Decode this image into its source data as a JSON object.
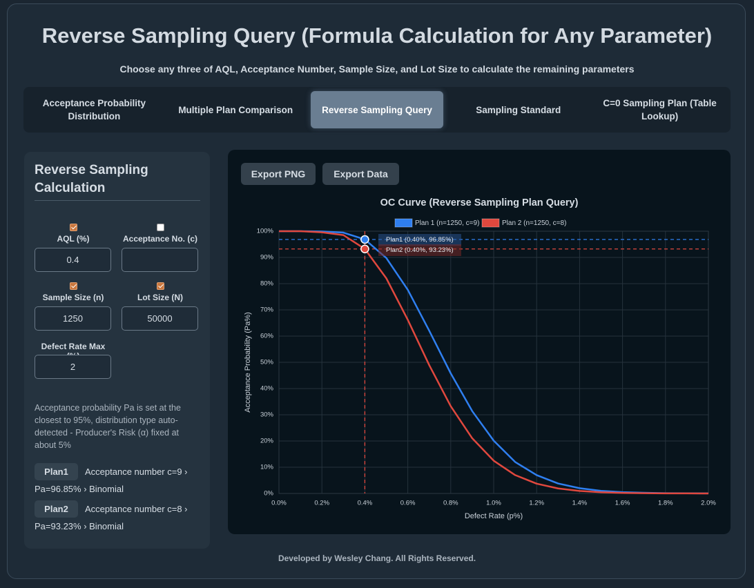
{
  "header": {
    "title": "Reverse Sampling Query (Formula Calculation for Any Parameter)",
    "subtitle": "Choose any three of AQL, Acceptance Number, Sample Size, and Lot Size to calculate the remaining parameters"
  },
  "tabs": [
    {
      "label": "Acceptance Probability Distribution"
    },
    {
      "label": "Multiple Plan Comparison"
    },
    {
      "label": "Reverse Sampling Query",
      "active": true
    },
    {
      "label": "Sampling Standard"
    },
    {
      "label": "C=0 Sampling Plan (Table Lookup)"
    }
  ],
  "form": {
    "title": "Reverse Sampling Calculation",
    "fields": [
      {
        "label": "AQL (%)",
        "checked": true,
        "value": "0.4"
      },
      {
        "label": "Acceptance No. (c)",
        "checked": false
      },
      {
        "label": "Sample Size (n)",
        "checked": true,
        "value": "1250"
      },
      {
        "label": "Lot Size (N)",
        "checked": true,
        "value": "50000"
      }
    ],
    "defect_rate_max": {
      "label": "Defect Rate Max (%)",
      "value": "2"
    },
    "note": "Acceptance probability Pa is set at the closest to 95%, distribution type auto-detected - Producer's Risk (α) fixed at about 5%",
    "results": [
      {
        "plan": "Plan1",
        "text": "Acceptance number c=9 › Pa=96.85% › Binomial"
      },
      {
        "plan": "Plan2",
        "text": "Acceptance number c=8 › Pa=93.23% › Binomial"
      }
    ]
  },
  "buttons": [
    "Export PNG",
    "Export Data"
  ],
  "chart_data": {
    "type": "line",
    "title": "OC Curve (Reverse Sampling Plan Query)",
    "x_label": "Defect Rate (p%)",
    "y_label": "Acceptance Probability (Pa%)",
    "x": [
      0,
      0.1,
      0.2,
      0.3,
      0.4,
      0.5,
      0.6,
      0.7,
      0.8,
      0.9,
      1.0,
      1.1,
      1.2,
      1.3,
      1.4,
      1.5,
      1.6,
      1.7,
      1.8,
      1.9,
      2.0
    ],
    "series": [
      {
        "name": "Plan 1 (n=1250, c=9)",
        "color": "#2f7ff0",
        "values": [
          100,
          100,
          99.89,
          99.47,
          96.85,
          89.78,
          77.64,
          62.03,
          45.79,
          31.4,
          20.14,
          12.0,
          6.99,
          3.8,
          2.01,
          1.0,
          0.5,
          0.25,
          0.1,
          0.05,
          0.02
        ]
      },
      {
        "name": "Plan 2 (n=1250, c=8)",
        "color": "#e0483e",
        "values": [
          100,
          100,
          99.58,
          98.52,
          93.23,
          82.04,
          66.2,
          48.9,
          33.28,
          21.05,
          12.49,
          7.0,
          3.74,
          1.9,
          0.95,
          0.45,
          0.21,
          0.1,
          0.04,
          0.02,
          0.01
        ]
      }
    ],
    "markers": [
      {
        "label": "Plan1 (0.40%, 96.85%)",
        "x": 0.4,
        "y": 96.85,
        "color": "#2f7ff0"
      },
      {
        "label": "Plan2 (0.40%, 93.23%)",
        "x": 0.4,
        "y": 93.23,
        "color": "#e0483e"
      }
    ],
    "xlim": [
      0,
      2.0
    ],
    "xticks": [
      {
        "value": 0,
        "label": "0.0%"
      },
      {
        "value": 0.2,
        "label": "0.2%"
      },
      {
        "value": 0.4,
        "label": "0.4%"
      },
      {
        "value": 0.6,
        "label": "0.6%"
      },
      {
        "value": 0.8,
        "label": "0.8%"
      },
      {
        "value": 1.0,
        "label": "1.0%"
      },
      {
        "value": 1.2,
        "label": "1.2%"
      },
      {
        "value": 1.4,
        "label": "1.4%"
      },
      {
        "value": 1.6,
        "label": "1.6%"
      },
      {
        "value": 1.8,
        "label": "1.8%"
      },
      {
        "value": 2.0,
        "label": "2.0%"
      }
    ],
    "ylim": [
      0,
      100
    ],
    "yticks": [
      {
        "value": 0,
        "label": "0%"
      },
      {
        "value": 10,
        "label": "10%"
      },
      {
        "value": 20,
        "label": "20%"
      },
      {
        "value": 30,
        "label": "30%"
      },
      {
        "value": 40,
        "label": "40%"
      },
      {
        "value": 50,
        "label": "50%"
      },
      {
        "value": 60,
        "label": "60%"
      },
      {
        "value": 70,
        "label": "70%"
      },
      {
        "value": 80,
        "label": "80%"
      },
      {
        "value": 90,
        "label": "90%"
      },
      {
        "value": 100,
        "label": "100%"
      }
    ],
    "grid": true,
    "legend": "top"
  },
  "footer": "Developed by Wesley Chang. All Rights Reserved."
}
